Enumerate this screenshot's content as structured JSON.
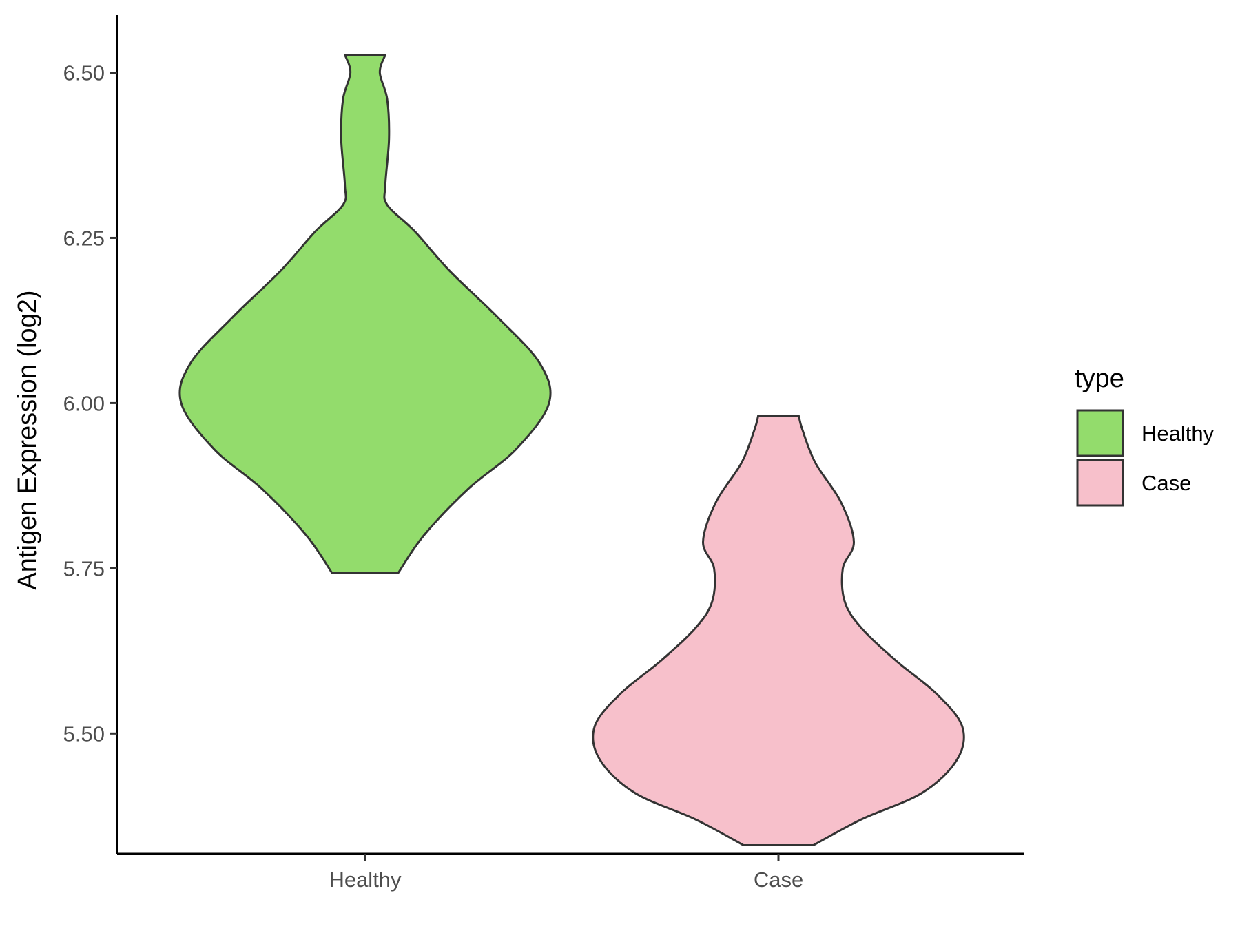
{
  "chart_data": {
    "type": "violin",
    "categories": [
      "Healthy",
      "Case"
    ],
    "ylabel": "Antigen Expression (log2)",
    "xlabel": "",
    "ylim": [
      5.318,
      6.587
    ],
    "yticks": [
      5.5,
      5.75,
      6.0,
      6.25,
      6.5
    ],
    "ytick_labels": [
      "5.50",
      "5.75",
      "6.00",
      "6.25",
      "6.50"
    ],
    "grid": false,
    "legend": {
      "title": "type",
      "position": "right",
      "entries": [
        {
          "label": "Healthy",
          "color": "#93dc6c"
        },
        {
          "label": "Case",
          "color": "#f7c0cb"
        }
      ]
    },
    "series": [
      {
        "category": "Healthy",
        "color": "#93dc6c",
        "min": 5.743,
        "max": 6.527,
        "density_profile": [
          [
            5.743,
            0.18
          ],
          [
            5.8,
            0.32
          ],
          [
            5.87,
            0.56
          ],
          [
            5.93,
            0.82
          ],
          [
            6.0,
            1.0
          ],
          [
            6.06,
            0.95
          ],
          [
            6.13,
            0.72
          ],
          [
            6.2,
            0.46
          ],
          [
            6.26,
            0.27
          ],
          [
            6.3,
            0.12
          ],
          [
            6.33,
            0.11
          ],
          [
            6.4,
            0.13
          ],
          [
            6.46,
            0.12
          ],
          [
            6.5,
            0.08
          ],
          [
            6.527,
            0.11
          ]
        ]
      },
      {
        "category": "Case",
        "color": "#f7c0cb",
        "min": 5.331,
        "max": 5.981,
        "density_profile": [
          [
            5.331,
            0.19
          ],
          [
            5.37,
            0.45
          ],
          [
            5.41,
            0.78
          ],
          [
            5.46,
            0.97
          ],
          [
            5.51,
            1.0
          ],
          [
            5.56,
            0.86
          ],
          [
            5.61,
            0.64
          ],
          [
            5.66,
            0.45
          ],
          [
            5.7,
            0.36
          ],
          [
            5.75,
            0.35
          ],
          [
            5.79,
            0.41
          ],
          [
            5.85,
            0.34
          ],
          [
            5.91,
            0.2
          ],
          [
            5.96,
            0.13
          ],
          [
            5.981,
            0.11
          ]
        ]
      }
    ]
  }
}
